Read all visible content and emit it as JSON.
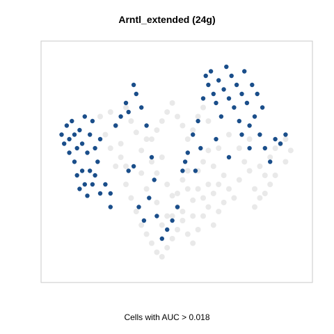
{
  "title": "Arntl_extended (24g)",
  "caption": "Cells with AUC > 0.018",
  "colors": {
    "background_cells": "#e3e3e3",
    "highlighted_cells": "#1a4e8a",
    "frame": "#c8c8c8"
  },
  "chart_data": {
    "type": "scatter",
    "title": "Arntl_extended (24g)",
    "xlabel": "Cells with AUC > 0.018",
    "ylabel": "",
    "axes_visible": false,
    "grid": false,
    "xlim": [
      0,
      100
    ],
    "ylim": [
      0,
      100
    ],
    "series": [
      {
        "name": "",
        "color": "#e3e3e3",
        "points": [
          [
            20,
            70
          ],
          [
            22,
            62
          ],
          [
            24,
            72
          ],
          [
            26,
            66
          ],
          [
            28,
            58
          ],
          [
            30,
            74
          ],
          [
            32,
            68
          ],
          [
            34,
            63
          ],
          [
            36,
            55
          ],
          [
            38,
            60
          ],
          [
            40,
            50
          ],
          [
            42,
            45
          ],
          [
            44,
            52
          ],
          [
            46,
            40
          ],
          [
            48,
            35
          ],
          [
            50,
            30
          ],
          [
            52,
            42
          ],
          [
            54,
            38
          ],
          [
            56,
            33
          ],
          [
            58,
            46
          ],
          [
            60,
            50
          ],
          [
            62,
            55
          ],
          [
            64,
            48
          ],
          [
            66,
            40
          ],
          [
            68,
            44
          ],
          [
            70,
            38
          ],
          [
            72,
            34
          ],
          [
            74,
            42
          ],
          [
            76,
            50
          ],
          [
            78,
            46
          ],
          [
            80,
            38
          ],
          [
            82,
            34
          ],
          [
            84,
            44
          ],
          [
            86,
            52
          ],
          [
            88,
            56
          ],
          [
            90,
            58
          ],
          [
            92,
            60
          ],
          [
            94,
            55
          ],
          [
            30,
            40
          ],
          [
            32,
            34
          ],
          [
            34,
            28
          ],
          [
            36,
            22
          ],
          [
            38,
            18
          ],
          [
            40,
            14
          ],
          [
            42,
            10
          ],
          [
            44,
            8
          ],
          [
            46,
            12
          ],
          [
            48,
            16
          ],
          [
            50,
            20
          ],
          [
            52,
            24
          ],
          [
            54,
            18
          ],
          [
            56,
            14
          ],
          [
            58,
            20
          ],
          [
            60,
            26
          ],
          [
            62,
            30
          ],
          [
            64,
            22
          ],
          [
            66,
            28
          ],
          [
            68,
            32
          ],
          [
            40,
            60
          ],
          [
            42,
            64
          ],
          [
            44,
            68
          ],
          [
            46,
            72
          ],
          [
            48,
            76
          ],
          [
            50,
            70
          ],
          [
            52,
            66
          ],
          [
            54,
            60
          ],
          [
            56,
            64
          ],
          [
            58,
            70
          ],
          [
            60,
            74
          ],
          [
            62,
            68
          ],
          [
            36,
            45
          ],
          [
            38,
            38
          ],
          [
            42,
            32
          ],
          [
            46,
            26
          ],
          [
            50,
            36
          ],
          [
            54,
            46
          ],
          [
            58,
            38
          ],
          [
            62,
            40
          ],
          [
            66,
            56
          ],
          [
            70,
            62
          ],
          [
            74,
            56
          ],
          [
            78,
            60
          ],
          [
            82,
            48
          ],
          [
            88,
            44
          ],
          [
            92,
            50
          ],
          [
            86,
            40
          ],
          [
            80,
            30
          ],
          [
            84,
            36
          ],
          [
            26,
            48
          ],
          [
            28,
            52
          ],
          [
            30,
            48
          ],
          [
            24,
            56
          ],
          [
            44,
            22
          ],
          [
            48,
            26
          ],
          [
            52,
            28
          ],
          [
            56,
            26
          ],
          [
            60,
            34
          ],
          [
            64,
            36
          ]
        ]
      },
      {
        "name": "",
        "color": "#1a4e8a",
        "points": [
          [
            5,
            62
          ],
          [
            6,
            58
          ],
          [
            7,
            66
          ],
          [
            8,
            60
          ],
          [
            8,
            54
          ],
          [
            9,
            68
          ],
          [
            10,
            62
          ],
          [
            10,
            50
          ],
          [
            11,
            56
          ],
          [
            11,
            44
          ],
          [
            12,
            64
          ],
          [
            12,
            38
          ],
          [
            13,
            58
          ],
          [
            13,
            46
          ],
          [
            14,
            70
          ],
          [
            14,
            40
          ],
          [
            15,
            54
          ],
          [
            15,
            35
          ],
          [
            16,
            62
          ],
          [
            16,
            46
          ],
          [
            17,
            68
          ],
          [
            17,
            40
          ],
          [
            18,
            56
          ],
          [
            19,
            50
          ],
          [
            20,
            60
          ],
          [
            22,
            40
          ],
          [
            24,
            36
          ],
          [
            26,
            66
          ],
          [
            28,
            70
          ],
          [
            30,
            76
          ],
          [
            31,
            72
          ],
          [
            33,
            84
          ],
          [
            34,
            80
          ],
          [
            36,
            74
          ],
          [
            38,
            66
          ],
          [
            40,
            52
          ],
          [
            42,
            26
          ],
          [
            44,
            16
          ],
          [
            46,
            20
          ],
          [
            48,
            24
          ],
          [
            50,
            30
          ],
          [
            52,
            46
          ],
          [
            54,
            54
          ],
          [
            56,
            62
          ],
          [
            58,
            68
          ],
          [
            60,
            78
          ],
          [
            61,
            88
          ],
          [
            62,
            84
          ],
          [
            63,
            90
          ],
          [
            64,
            80
          ],
          [
            65,
            76
          ],
          [
            66,
            86
          ],
          [
            67,
            70
          ],
          [
            68,
            82
          ],
          [
            69,
            92
          ],
          [
            70,
            78
          ],
          [
            71,
            88
          ],
          [
            72,
            74
          ],
          [
            73,
            84
          ],
          [
            74,
            68
          ],
          [
            75,
            80
          ],
          [
            76,
            90
          ],
          [
            77,
            76
          ],
          [
            78,
            66
          ],
          [
            79,
            84
          ],
          [
            80,
            70
          ],
          [
            81,
            80
          ],
          [
            82,
            62
          ],
          [
            83,
            74
          ],
          [
            84,
            56
          ],
          [
            86,
            50
          ],
          [
            88,
            60
          ],
          [
            90,
            58
          ],
          [
            92,
            62
          ],
          [
            31,
            46
          ],
          [
            33,
            48
          ],
          [
            24,
            30
          ],
          [
            20,
            36
          ],
          [
            18,
            44
          ],
          [
            35,
            30
          ],
          [
            37,
            24
          ],
          [
            39,
            34
          ],
          [
            41,
            42
          ],
          [
            53,
            50
          ],
          [
            57,
            46
          ],
          [
            59,
            56
          ],
          [
            65,
            60
          ],
          [
            70,
            52
          ],
          [
            75,
            62
          ],
          [
            78,
            56
          ]
        ]
      }
    ]
  }
}
